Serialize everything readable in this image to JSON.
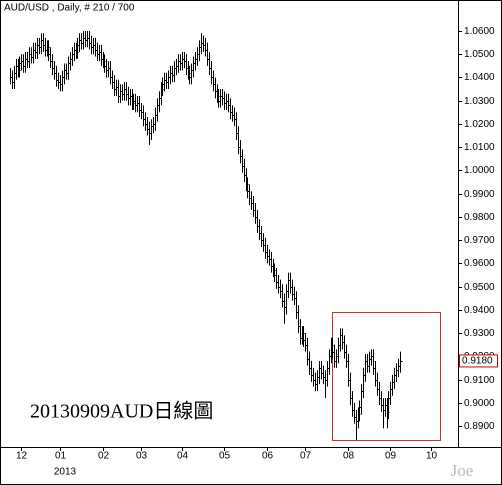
{
  "chart_data": {
    "type": "ohlc",
    "title": "AUD/USD , Daily, # 210 / 700",
    "annotation": "20130909AUD日線圖",
    "watermark": "Joe",
    "year_label": "2013",
    "color": "#000000",
    "ylim": [
      0.8814,
      1.0673
    ],
    "yticks": [
      {
        "value": 1.06,
        "label": "1.0600"
      },
      {
        "value": 1.05,
        "label": "1.0500"
      },
      {
        "value": 1.04,
        "label": "1.0400"
      },
      {
        "value": 1.03,
        "label": "1.0300"
      },
      {
        "value": 1.02,
        "label": "1.0200"
      },
      {
        "value": 1.01,
        "label": "1.0100"
      },
      {
        "value": 1.0,
        "label": "1.0000"
      },
      {
        "value": 0.99,
        "label": "0.9900"
      },
      {
        "value": 0.98,
        "label": "0.9800"
      },
      {
        "value": 0.97,
        "label": "0.9700"
      },
      {
        "value": 0.96,
        "label": "0.9600"
      },
      {
        "value": 0.95,
        "label": "0.9500"
      },
      {
        "value": 0.94,
        "label": "0.9400"
      },
      {
        "value": 0.93,
        "label": "0.9300"
      },
      {
        "value": 0.92,
        "label": "0.9200"
      },
      {
        "value": 0.91,
        "label": "0.9100"
      },
      {
        "value": 0.9,
        "label": "0.9000"
      },
      {
        "value": 0.89,
        "label": "0.8900"
      }
    ],
    "xlim": [
      -2.5,
      232
    ],
    "xticks": [
      {
        "value": 6,
        "label": "12"
      },
      {
        "value": 26,
        "label": "01"
      },
      {
        "value": 48,
        "label": "02"
      },
      {
        "value": 68,
        "label": "03"
      },
      {
        "value": 89,
        "label": "04"
      },
      {
        "value": 111,
        "label": "05"
      },
      {
        "value": 133,
        "label": "06"
      },
      {
        "value": 153,
        "label": "07"
      },
      {
        "value": 175,
        "label": "08"
      },
      {
        "value": 197,
        "label": "09"
      },
      {
        "value": 218,
        "label": "10"
      }
    ],
    "last_price": {
      "value": 0.918,
      "label": "0.9180",
      "color": "#cc0000"
    },
    "high": [
      1.044,
      1.043,
      1.045,
      1.048,
      1.048,
      1.049,
      1.05,
      1.05,
      1.051,
      1.051,
      1.053,
      1.053,
      1.055,
      1.055,
      1.057,
      1.057,
      1.059,
      1.059,
      1.057,
      1.056,
      1.056,
      1.053,
      1.05,
      1.047,
      1.045,
      1.042,
      1.041,
      1.043,
      1.046,
      1.046,
      1.049,
      1.051,
      1.053,
      1.055,
      1.055,
      1.057,
      1.059,
      1.059,
      1.06,
      1.06,
      1.06,
      1.06,
      1.058,
      1.057,
      1.057,
      1.055,
      1.054,
      1.054,
      1.051,
      1.05,
      1.048,
      1.047,
      1.047,
      1.043,
      1.041,
      1.039,
      1.039,
      1.037,
      1.037,
      1.038,
      1.038,
      1.036,
      1.035,
      1.035,
      1.033,
      1.033,
      1.032,
      1.032,
      1.029,
      1.028,
      1.025,
      1.023,
      1.021,
      1.022,
      1.023,
      1.027,
      1.031,
      1.034,
      1.038,
      1.04,
      1.042,
      1.042,
      1.043,
      1.045,
      1.045,
      1.047,
      1.048,
      1.05,
      1.05,
      1.051,
      1.051,
      1.05,
      1.047,
      1.045,
      1.046,
      1.049,
      1.051,
      1.053,
      1.056,
      1.059,
      1.058,
      1.057,
      1.055,
      1.051,
      1.047,
      1.043,
      1.04,
      1.037,
      1.035,
      1.035,
      1.035,
      1.034,
      1.033,
      1.033,
      1.031,
      1.028,
      1.027,
      1.025,
      1.019,
      1.013,
      1.009,
      1.005,
      1.001,
      0.997,
      0.994,
      0.991,
      0.989,
      0.986,
      0.983,
      0.979,
      0.976,
      0.973,
      0.971,
      0.968,
      0.966,
      0.965,
      0.962,
      0.96,
      0.958,
      0.955,
      0.953,
      0.951,
      0.947,
      0.951,
      0.956,
      0.956,
      0.953,
      0.95,
      0.948,
      0.942,
      0.936,
      0.933,
      0.933,
      0.93,
      0.928,
      0.922,
      0.918,
      0.915,
      0.913,
      0.914,
      0.918,
      0.918,
      0.916,
      0.914,
      0.918,
      0.923,
      0.928,
      0.928,
      0.925,
      0.923,
      0.928,
      0.932,
      0.932,
      0.929,
      0.925,
      0.921,
      0.913,
      0.905,
      0.9,
      0.897,
      0.898,
      0.901,
      0.908,
      0.915,
      0.921,
      0.921,
      0.922,
      0.923,
      0.923,
      0.918,
      0.913,
      0.909,
      0.905,
      0.902,
      0.902,
      0.902,
      0.905,
      0.909,
      0.912,
      0.915,
      0.917,
      0.919,
      0.922
    ],
    "low": [
      1.037,
      1.035,
      1.035,
      1.039,
      1.04,
      1.04,
      1.043,
      1.042,
      1.042,
      1.044,
      1.044,
      1.046,
      1.046,
      1.048,
      1.048,
      1.05,
      1.05,
      1.051,
      1.049,
      1.049,
      1.047,
      1.044,
      1.041,
      1.039,
      1.036,
      1.035,
      1.034,
      1.034,
      1.037,
      1.039,
      1.039,
      1.043,
      1.045,
      1.047,
      1.048,
      1.048,
      1.051,
      1.052,
      1.052,
      1.053,
      1.053,
      1.052,
      1.05,
      1.05,
      1.049,
      1.047,
      1.047,
      1.045,
      1.044,
      1.042,
      1.04,
      1.04,
      1.037,
      1.035,
      1.032,
      1.032,
      1.029,
      1.029,
      1.03,
      1.03,
      1.03,
      1.028,
      1.028,
      1.026,
      1.026,
      1.025,
      1.025,
      1.023,
      1.022,
      1.019,
      1.017,
      1.015,
      1.011,
      1.013,
      1.016,
      1.017,
      1.021,
      1.025,
      1.028,
      1.032,
      1.034,
      1.035,
      1.035,
      1.037,
      1.038,
      1.038,
      1.041,
      1.042,
      1.043,
      1.043,
      1.044,
      1.041,
      1.039,
      1.037,
      1.037,
      1.04,
      1.043,
      1.045,
      1.047,
      1.05,
      1.051,
      1.049,
      1.045,
      1.041,
      1.037,
      1.034,
      1.031,
      1.029,
      1.027,
      1.027,
      1.028,
      1.026,
      1.026,
      1.025,
      1.022,
      1.021,
      1.019,
      1.013,
      1.007,
      1.003,
      0.999,
      0.995,
      0.991,
      0.988,
      0.985,
      0.983,
      0.98,
      0.977,
      0.973,
      0.97,
      0.967,
      0.965,
      0.962,
      0.96,
      0.959,
      0.956,
      0.954,
      0.952,
      0.949,
      0.947,
      0.945,
      0.941,
      0.934,
      0.938,
      0.945,
      0.947,
      0.944,
      0.942,
      0.936,
      0.93,
      0.925,
      0.925,
      0.924,
      0.922,
      0.916,
      0.912,
      0.909,
      0.907,
      0.905,
      0.905,
      0.908,
      0.91,
      0.908,
      0.902,
      0.907,
      0.912,
      0.917,
      0.919,
      0.915,
      0.915,
      0.917,
      0.922,
      0.923,
      0.919,
      0.915,
      0.907,
      0.899,
      0.894,
      0.891,
      0.884,
      0.889,
      0.892,
      0.895,
      0.902,
      0.909,
      0.913,
      0.913,
      0.916,
      0.912,
      0.907,
      0.903,
      0.899,
      0.896,
      0.889,
      0.894,
      0.889,
      0.893,
      0.899,
      0.903,
      0.906,
      0.909,
      0.911,
      0.913
    ],
    "close": [
      1.04,
      1.038,
      1.042,
      1.045,
      1.043,
      1.046,
      1.047,
      1.045,
      1.048,
      1.047,
      1.05,
      1.049,
      1.052,
      1.051,
      1.054,
      1.053,
      1.056,
      1.054,
      1.052,
      1.053,
      1.05,
      1.047,
      1.044,
      1.042,
      1.039,
      1.038,
      1.037,
      1.04,
      1.043,
      1.042,
      1.046,
      1.048,
      1.05,
      1.052,
      1.051,
      1.054,
      1.056,
      1.055,
      1.057,
      1.056,
      1.057,
      1.055,
      1.053,
      1.054,
      1.052,
      1.05,
      1.051,
      1.048,
      1.047,
      1.045,
      1.043,
      1.044,
      1.04,
      1.038,
      1.035,
      1.036,
      1.032,
      1.034,
      1.033,
      1.035,
      1.033,
      1.031,
      1.032,
      1.029,
      1.03,
      1.028,
      1.029,
      1.026,
      1.025,
      1.022,
      1.02,
      1.018,
      1.016,
      1.019,
      1.02,
      1.024,
      1.028,
      1.031,
      1.035,
      1.037,
      1.039,
      1.038,
      1.04,
      1.042,
      1.041,
      1.044,
      1.045,
      1.047,
      1.046,
      1.048,
      1.047,
      1.044,
      1.042,
      1.04,
      1.043,
      1.046,
      1.048,
      1.05,
      1.053,
      1.055,
      1.054,
      1.052,
      1.048,
      1.044,
      1.04,
      1.037,
      1.034,
      1.032,
      1.03,
      1.032,
      1.031,
      1.029,
      1.03,
      1.028,
      1.025,
      1.024,
      1.022,
      1.016,
      1.01,
      1.006,
      1.002,
      0.998,
      0.994,
      0.991,
      0.988,
      0.986,
      0.983,
      0.98,
      0.976,
      0.973,
      0.97,
      0.968,
      0.965,
      0.963,
      0.962,
      0.959,
      0.957,
      0.955,
      0.952,
      0.95,
      0.948,
      0.944,
      0.941,
      0.948,
      0.953,
      0.95,
      0.947,
      0.945,
      0.939,
      0.933,
      0.928,
      0.93,
      0.927,
      0.925,
      0.919,
      0.915,
      0.912,
      0.91,
      0.908,
      0.911,
      0.915,
      0.913,
      0.911,
      0.91,
      0.915,
      0.92,
      0.925,
      0.922,
      0.918,
      0.92,
      0.925,
      0.929,
      0.926,
      0.922,
      0.918,
      0.91,
      0.902,
      0.897,
      0.894,
      0.892,
      0.895,
      0.898,
      0.905,
      0.912,
      0.918,
      0.916,
      0.919,
      0.92,
      0.915,
      0.91,
      0.906,
      0.902,
      0.899,
      0.897,
      0.899,
      0.896,
      0.902,
      0.906,
      0.909,
      0.912,
      0.914,
      0.916,
      0.918
    ]
  }
}
